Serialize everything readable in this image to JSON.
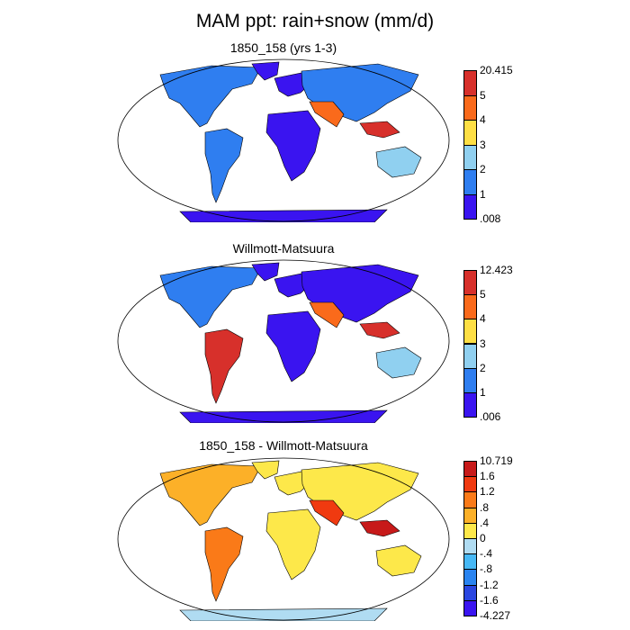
{
  "title": "MAM ppt: rain+snow (mm/d)",
  "panels": [
    {
      "title": "1850_158 (yrs 1-3)",
      "labels": [
        "20.415",
        "5",
        "4",
        "3",
        "2",
        "1",
        ".008"
      ],
      "colors": [
        "#d7302b",
        "#fa6a1b",
        "#fedf44",
        "#90d0f0",
        "#2f7ef0",
        "#3a14f0"
      ]
    },
    {
      "title": "Willmott-Matsuura",
      "labels": [
        "12.423",
        "5",
        "4",
        "3",
        "2",
        "1",
        ".006"
      ],
      "colors": [
        "#d7302b",
        "#fa6a1b",
        "#fedf44",
        "#90d0f0",
        "#2f7ef0",
        "#3a14f0"
      ]
    },
    {
      "title": "1850_158 - Willmott-Matsuura",
      "labels": [
        "10.719",
        "1.6",
        "1.2",
        ".8",
        ".4",
        "0",
        "-.4",
        "-.8",
        "-1.2",
        "-1.6",
        "-4.227"
      ],
      "colors": [
        "#c71a1a",
        "#f03a10",
        "#fa7a18",
        "#fcb028",
        "#fde84a",
        "#b0dcf2",
        "#46b8f5",
        "#2a84f0",
        "#2a46e0",
        "#3a14f0"
      ]
    }
  ]
}
